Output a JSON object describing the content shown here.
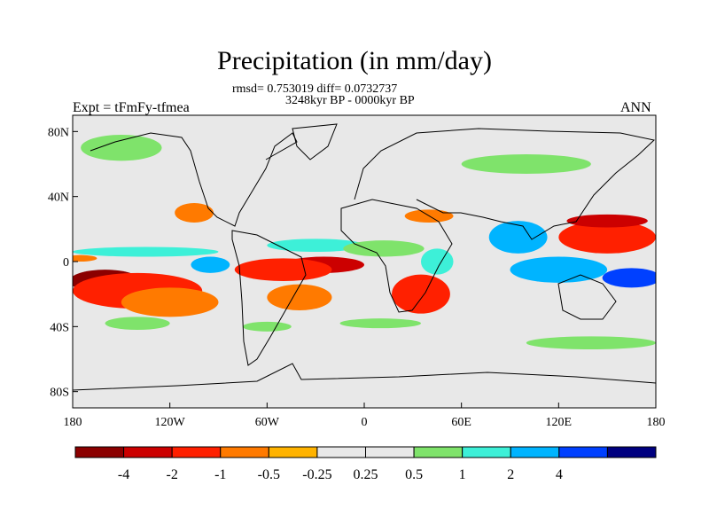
{
  "title": "Precipitation (in mm/day)",
  "stats": "rmsd= 0.753019 diff= 0.0732737",
  "period": "3248kyr BP - 0000kyr BP",
  "experiment": "Expt = tFmFy-tfmea",
  "season": "ANN",
  "y_axis": {
    "ticks": [
      "80N",
      "40N",
      "0",
      "40S",
      "80S"
    ],
    "range": [
      90,
      -90
    ]
  },
  "x_axis": {
    "ticks": [
      "180",
      "120W",
      "60W",
      "0",
      "60E",
      "120E",
      "180"
    ],
    "range": [
      -180,
      180
    ]
  },
  "colorbar": {
    "colors": [
      "#8b0000",
      "#cc0000",
      "#ff2000",
      "#ff7a00",
      "#ffb300",
      "#e8e8e8",
      "#e8e8e8",
      "#7fe36b",
      "#3df0d8",
      "#00b4ff",
      "#0040ff",
      "#000080"
    ],
    "labels": [
      "-4",
      "-2",
      "-1",
      "-0.5",
      "-0.25",
      "0.25",
      "0.5",
      "1",
      "2",
      "4"
    ]
  },
  "background_color": "#e8e8e8",
  "anomaly_patches": [
    {
      "lon": -160,
      "lat": -12,
      "rlon": 22,
      "rlat": 7,
      "level": "-4"
    },
    {
      "lon": -140,
      "lat": -18,
      "rlon": 40,
      "rlat": 11,
      "level": "-1"
    },
    {
      "lon": -120,
      "lat": -25,
      "rlon": 30,
      "rlat": 9,
      "level": "-0.5"
    },
    {
      "lon": -135,
      "lat": 6,
      "rlon": 45,
      "rlat": 3,
      "level": "1"
    },
    {
      "lon": -175,
      "lat": 2,
      "rlon": 10,
      "rlat": 2,
      "level": "-0.5"
    },
    {
      "lon": -95,
      "lat": -2,
      "rlon": 12,
      "rlat": 5,
      "level": "2"
    },
    {
      "lon": -25,
      "lat": -2,
      "rlon": 25,
      "rlat": 5,
      "level": "-2"
    },
    {
      "lon": -50,
      "lat": -5,
      "rlon": 30,
      "rlat": 7,
      "level": "-1"
    },
    {
      "lon": -40,
      "lat": -22,
      "rlon": 20,
      "rlat": 8,
      "level": "-0.5"
    },
    {
      "lon": -30,
      "lat": 10,
      "rlon": 30,
      "rlat": 4,
      "level": "1"
    },
    {
      "lon": 35,
      "lat": -20,
      "rlon": 18,
      "rlat": 12,
      "level": "-1"
    },
    {
      "lon": 12,
      "lat": 8,
      "rlon": 25,
      "rlat": 5,
      "level": "0.5"
    },
    {
      "lon": 45,
      "lat": 0,
      "rlon": 10,
      "rlat": 8,
      "level": "1"
    },
    {
      "lon": 95,
      "lat": 15,
      "rlon": 18,
      "rlat": 10,
      "level": "2"
    },
    {
      "lon": 150,
      "lat": 15,
      "rlon": 30,
      "rlat": 10,
      "level": "-1"
    },
    {
      "lon": 150,
      "lat": 25,
      "rlon": 25,
      "rlat": 4,
      "level": "-2"
    },
    {
      "lon": 120,
      "lat": -5,
      "rlon": 30,
      "rlat": 8,
      "level": "2"
    },
    {
      "lon": 165,
      "lat": -10,
      "rlon": 18,
      "rlat": 6,
      "level": "4"
    },
    {
      "lon": -150,
      "lat": 70,
      "rlon": 25,
      "rlat": 8,
      "level": "0.5"
    },
    {
      "lon": 100,
      "lat": 60,
      "rlon": 40,
      "rlat": 6,
      "level": "0.5"
    },
    {
      "lon": -60,
      "lat": -40,
      "rlon": 15,
      "rlat": 3,
      "level": "0.5"
    },
    {
      "lon": 10,
      "lat": -38,
      "rlon": 25,
      "rlat": 3,
      "level": "0.5"
    },
    {
      "lon": 140,
      "lat": -50,
      "rlon": 40,
      "rlat": 4,
      "level": "0.5"
    },
    {
      "lon": -140,
      "lat": -38,
      "rlon": 20,
      "rlat": 4,
      "level": "0.5"
    },
    {
      "lon": -105,
      "lat": 30,
      "rlon": 12,
      "rlat": 6,
      "level": "-0.5"
    },
    {
      "lon": 40,
      "lat": 28,
      "rlon": 15,
      "rlat": 4,
      "level": "-0.5"
    }
  ]
}
